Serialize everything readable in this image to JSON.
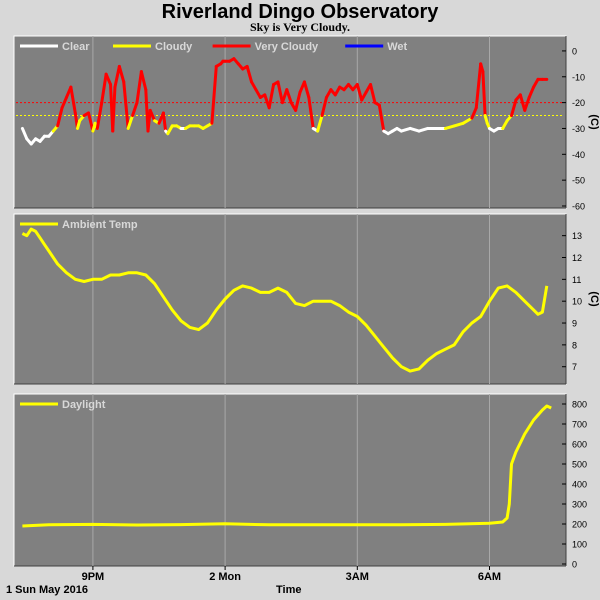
{
  "title": "Riverland Dingo Observatory",
  "subtitle": "Sky is Very Cloudy.",
  "footer": {
    "date": "1 Sun May 2016",
    "xlabel": "Time"
  },
  "colors": {
    "panel": "#808080",
    "frame": "#d8d8d8",
    "grid": "#a8a8a8",
    "clear": "#ffffff",
    "cloudy": "#ffff00",
    "very_cloudy": "#ff0000",
    "wet": "#0000ff",
    "threshold_red": "#ff0000",
    "threshold_yellow": "#ffff00"
  },
  "x_axis": {
    "ticks": [
      {
        "t": 21,
        "label": "9PM"
      },
      {
        "t": 24,
        "label": "2 Mon"
      },
      {
        "t": 27,
        "label": "3AM"
      },
      {
        "t": 30,
        "label": "6AM"
      }
    ],
    "range": [
      19.3,
      31.6
    ]
  },
  "chart_data": [
    {
      "type": "line",
      "name": "sky",
      "legend": [
        {
          "label": "Clear",
          "color": "#ffffff"
        },
        {
          "label": "Cloudy",
          "color": "#ffff00"
        },
        {
          "label": "Very Cloudy",
          "color": "#ff0000"
        },
        {
          "label": "Wet",
          "color": "#0000ff"
        }
      ],
      "ylabel": "(C)",
      "ylim": [
        -60,
        5
      ],
      "yticks": [
        0,
        -10,
        -20,
        -30,
        -40,
        -50,
        -60
      ],
      "thresholds": [
        {
          "y": -20,
          "color": "#ff0000"
        },
        {
          "y": -25,
          "color": "#ffff00"
        }
      ],
      "category_bounds": {
        "very_cloudy_above": -25,
        "cloudy_above": -30
      },
      "x": [
        19.4,
        19.5,
        19.6,
        19.7,
        19.8,
        19.9,
        20.0,
        20.1,
        20.2,
        20.3,
        20.4,
        20.5,
        20.6,
        20.65,
        20.7,
        20.8,
        20.9,
        21.0,
        21.05,
        21.1,
        21.2,
        21.3,
        21.4,
        21.45,
        21.5,
        21.6,
        21.7,
        21.8,
        21.9,
        22.0,
        22.1,
        22.2,
        22.25,
        22.3,
        22.4,
        22.5,
        22.6,
        22.65,
        22.7,
        22.8,
        22.9,
        23.0,
        23.1,
        23.2,
        23.3,
        23.4,
        23.5,
        23.6,
        23.7,
        23.8,
        23.9,
        23.95,
        24.0,
        24.1,
        24.2,
        24.3,
        24.4,
        24.5,
        24.6,
        24.7,
        24.8,
        24.9,
        25.0,
        25.1,
        25.2,
        25.3,
        25.4,
        25.5,
        25.6,
        25.7,
        25.8,
        25.9,
        26.0,
        26.1,
        26.2,
        26.3,
        26.4,
        26.5,
        26.6,
        26.7,
        26.8,
        26.9,
        27.0,
        27.1,
        27.2,
        27.3,
        27.4,
        27.5,
        27.6,
        27.7,
        27.8,
        27.9,
        28.0,
        28.2,
        28.4,
        28.6,
        28.8,
        29.0,
        29.2,
        29.4,
        29.6,
        29.7,
        29.8,
        29.85,
        29.9,
        29.95,
        30.0,
        30.1,
        30.2,
        30.3,
        30.4,
        30.5,
        30.6,
        30.7,
        30.8,
        30.9,
        31.0,
        31.1,
        31.2,
        31.3
      ],
      "y": [
        -30,
        -34,
        -36,
        -34,
        -35,
        -33,
        -33,
        -31,
        -29,
        -22,
        -18,
        -14,
        -24,
        -30,
        -27,
        -25,
        -24,
        -31,
        -28,
        -30,
        -20,
        -9,
        -13,
        -31,
        -14,
        -6,
        -12,
        -30,
        -25,
        -20,
        -8,
        -15,
        -31,
        -23,
        -27,
        -28,
        -24,
        -31,
        -32,
        -29,
        -29,
        -30,
        -30,
        -29,
        -29,
        -29,
        -30,
        -29,
        -28,
        -6,
        -5,
        -4,
        -4,
        -4,
        -3,
        -5,
        -7,
        -6,
        -12,
        -15,
        -18,
        -17,
        -22,
        -13,
        -12,
        -20,
        -15,
        -20,
        -23,
        -16,
        -12,
        -18,
        -30,
        -31,
        -25,
        -18,
        -15,
        -17,
        -14,
        -15,
        -13,
        -15,
        -13,
        -19,
        -16,
        -13,
        -20,
        -21,
        -31,
        -32,
        -31,
        -30,
        -31,
        -30,
        -31,
        -30,
        -30,
        -30,
        -29,
        -28,
        -26,
        -22,
        -5,
        -8,
        -25,
        -28,
        -30,
        -31,
        -30,
        -30,
        -27,
        -25,
        -19,
        -17,
        -23,
        -18,
        -14,
        -11,
        -11,
        -11
      ]
    },
    {
      "type": "line",
      "name": "Ambient Temp",
      "legend": [
        {
          "label": "Ambient Temp",
          "color": "#ffff00"
        }
      ],
      "ylabel": "(C)",
      "ylim": [
        6.3,
        13.9
      ],
      "yticks": [
        13,
        12,
        11,
        10,
        9,
        8,
        7
      ],
      "color": "#ffff00",
      "x": [
        19.4,
        19.5,
        19.6,
        19.7,
        19.8,
        19.9,
        20.0,
        20.2,
        20.4,
        20.6,
        20.8,
        21.0,
        21.2,
        21.4,
        21.6,
        21.8,
        22.0,
        22.2,
        22.4,
        22.6,
        22.8,
        23.0,
        23.2,
        23.4,
        23.6,
        23.8,
        24.0,
        24.2,
        24.4,
        24.6,
        24.8,
        25.0,
        25.2,
        25.4,
        25.6,
        25.8,
        26.0,
        26.2,
        26.4,
        26.6,
        26.8,
        27.0,
        27.2,
        27.4,
        27.6,
        27.8,
        28.0,
        28.2,
        28.4,
        28.6,
        28.8,
        29.0,
        29.2,
        29.4,
        29.6,
        29.8,
        30.0,
        30.2,
        30.4,
        30.6,
        30.8,
        31.0,
        31.1,
        31.2,
        31.3
      ],
      "y": [
        13.1,
        13.0,
        13.3,
        13.2,
        12.9,
        12.6,
        12.3,
        11.7,
        11.3,
        11.0,
        10.9,
        11.0,
        11.0,
        11.2,
        11.2,
        11.3,
        11.3,
        11.2,
        10.8,
        10.2,
        9.6,
        9.1,
        8.8,
        8.7,
        9.0,
        9.6,
        10.1,
        10.5,
        10.7,
        10.6,
        10.4,
        10.4,
        10.6,
        10.4,
        9.9,
        9.8,
        10.0,
        10.0,
        10.0,
        9.8,
        9.5,
        9.3,
        8.9,
        8.4,
        7.9,
        7.4,
        7.0,
        6.8,
        6.9,
        7.3,
        7.6,
        7.8,
        8.0,
        8.6,
        9.0,
        9.3,
        10.0,
        10.6,
        10.7,
        10.4,
        10.0,
        9.6,
        9.4,
        9.5,
        10.7
      ]
    },
    {
      "type": "line",
      "name": "Daylight",
      "legend": [
        {
          "label": "Daylight",
          "color": "#ffff00"
        }
      ],
      "ylim": [
        0,
        840
      ],
      "yticks": [
        800,
        700,
        600,
        500,
        400,
        300,
        200,
        100,
        0
      ],
      "color": "#ffff00",
      "x": [
        19.4,
        20.0,
        21.0,
        22.0,
        23.0,
        24.0,
        25.0,
        26.0,
        27.0,
        28.0,
        29.0,
        30.0,
        30.3,
        30.4,
        30.45,
        30.5,
        30.6,
        30.8,
        31.0,
        31.2,
        31.3,
        31.4
      ],
      "y": [
        190,
        196,
        198,
        195,
        197,
        201,
        196,
        196,
        196,
        196,
        198,
        204,
        210,
        230,
        300,
        500,
        560,
        650,
        720,
        770,
        790,
        780
      ]
    }
  ]
}
